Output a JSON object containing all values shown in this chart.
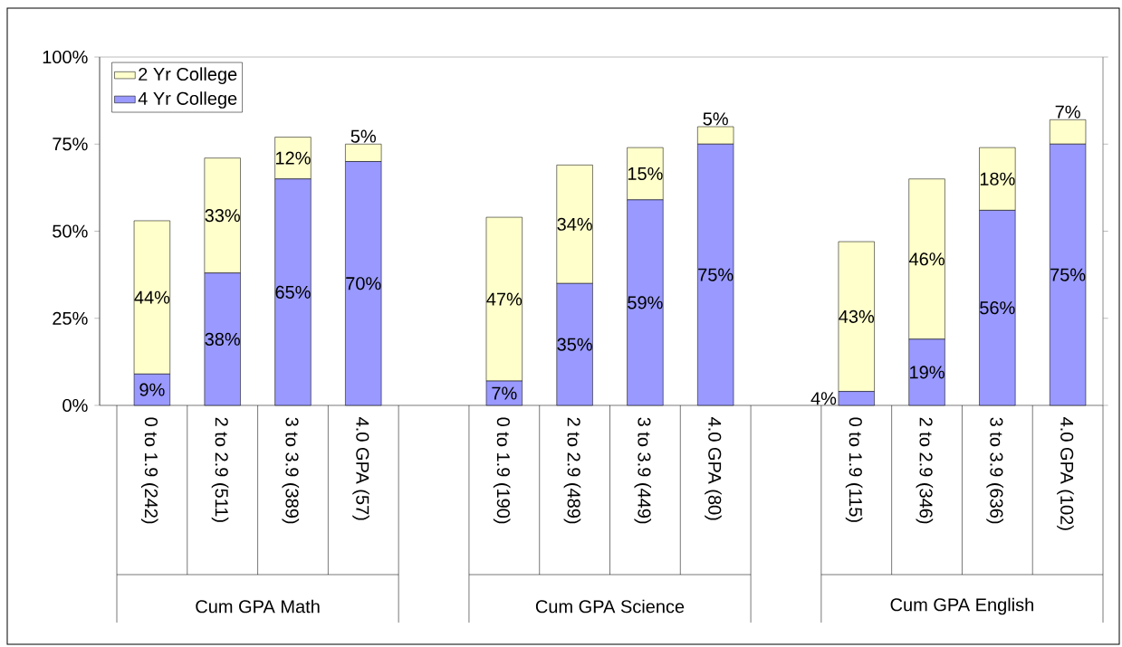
{
  "chart_data": {
    "type": "bar",
    "stacked": true,
    "categories": [
      "0 to 1.9  (242)",
      "2 to 2.9  (511)",
      "3 to 3.9  (389)",
      "4.0 GPA  (57)",
      null,
      "0 to 1.9  (190)",
      "2 to 2.9  (489)",
      "3 to 3.9  (449)",
      "4.0 GPA  (80)",
      null,
      "0 to 1.9  (115)",
      "2 to 2.9  (346)",
      "3 to 3.9  (636)",
      "4.0 GPA  (102)"
    ],
    "series": [
      {
        "name": "4 Yr College",
        "color": "#9999ff",
        "values": [
          9,
          38,
          65,
          70,
          null,
          7,
          35,
          59,
          75,
          null,
          4,
          19,
          56,
          75
        ],
        "value_labels": [
          "9%",
          "38%",
          "65%",
          "70%",
          null,
          "7%",
          "35%",
          "59%",
          "75%",
          null,
          "4%",
          "19%",
          "56%",
          "75%"
        ]
      },
      {
        "name": "2 Yr College",
        "color": "#ffffcc",
        "values": [
          44,
          33,
          12,
          5,
          null,
          47,
          34,
          15,
          5,
          null,
          43,
          46,
          18,
          7
        ],
        "value_labels": [
          "44%",
          "33%",
          "12%",
          "5%",
          null,
          "47%",
          "34%",
          "15%",
          "5%",
          null,
          "43%",
          "46%",
          "18%",
          "7%"
        ]
      }
    ],
    "ylim": [
      0,
      100
    ],
    "yticks": [
      {
        "value": 0,
        "label": "0%"
      },
      {
        "value": 25,
        "label": "25%"
      },
      {
        "value": 50,
        "label": "50%"
      },
      {
        "value": 75,
        "label": "75%"
      },
      {
        "value": 100,
        "label": "100%"
      }
    ],
    "legend": "top left",
    "annotations": [
      "Cum GPA Math",
      "Cum GPA Science",
      "Cum GPA English"
    ]
  }
}
